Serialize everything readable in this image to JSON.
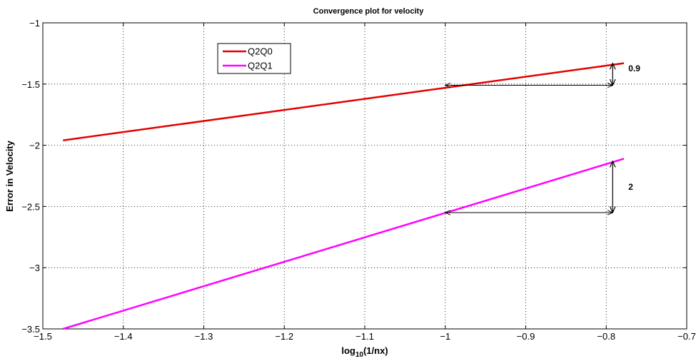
{
  "chart_data": {
    "type": "line",
    "title": "Convergence plot for velocity",
    "xlabel_base": "log",
    "xlabel_sub": "10",
    "xlabel_rest": "(1/nx)",
    "ylabel": "Error in Velocity",
    "xlim": [
      -1.5,
      -0.7
    ],
    "ylim": [
      -3.5,
      -1
    ],
    "xticks": [
      -1.5,
      -1.4,
      -1.3,
      -1.2,
      -1.1,
      -1,
      -0.9,
      -0.8,
      -0.7
    ],
    "xtick_labels": [
      "−1.5",
      "−1.4",
      "−1.3",
      "−1.2",
      "−1.1",
      "−1",
      "−0.9",
      "−0.8",
      "−0.7"
    ],
    "yticks": [
      -1,
      -1.5,
      -2,
      -2.5,
      -3,
      -3.5
    ],
    "ytick_labels": [
      "−1",
      "−1.5",
      "−2",
      "−2.5",
      "−3",
      "−3.5"
    ],
    "grid": true,
    "legend_position": "top-left",
    "series": [
      {
        "name": "Q2Q0",
        "color": "#e50000",
        "x": [
          -1.4749,
          -0.778
        ],
        "y": [
          -1.96,
          -1.33
        ]
      },
      {
        "name": "Q2Q1",
        "color": "#ff00ff",
        "x": [
          -1.4749,
          -0.778
        ],
        "y": [
          -3.5,
          -2.11
        ]
      }
    ],
    "annotations": [
      {
        "text": "0.9",
        "h_from": [
          -1.0,
          -1.51
        ],
        "h_to": [
          -0.792,
          -1.51
        ],
        "v_x": -0.792,
        "v_from": -1.51,
        "v_to": -1.33
      },
      {
        "text": "2",
        "h_from": [
          -1.0,
          -2.55
        ],
        "h_to": [
          -0.792,
          -2.55
        ],
        "v_x": -0.792,
        "v_from": -2.55,
        "v_to": -2.13
      }
    ]
  }
}
